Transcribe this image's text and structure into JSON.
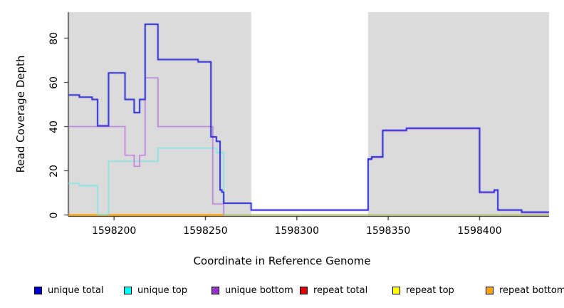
{
  "figure": {
    "xlabel": "Coordinate in Reference Genome",
    "ylabel": "Read Coverage Depth"
  },
  "chart_data": {
    "type": "line",
    "subtype": "step-coverage-depth",
    "title": "",
    "xlabel": "Coordinate in Reference Genome",
    "ylabel": "Read Coverage Depth",
    "xlim": [
      1598175,
      1598438
    ],
    "ylim": [
      0,
      92
    ],
    "x_ticks": [
      1598200,
      1598250,
      1598300,
      1598350,
      1598400
    ],
    "y_ticks": [
      0,
      20,
      40,
      60,
      80
    ],
    "grid": false,
    "legend_position": "bottom",
    "plot_background": {
      "shaded_color": "#DBDBDB",
      "shaded_regions_x": [
        [
          1598175,
          1598275
        ],
        [
          1598339,
          1598438
        ]
      ],
      "white_gap_x": [
        1598275,
        1598339
      ]
    },
    "series": [
      {
        "name": "unique total",
        "line_color": "#2B2BD5",
        "width": 2,
        "zorder": 7,
        "segments": [
          {
            "points": [
              [
                1598175,
                54
              ],
              [
                1598181,
                53
              ],
              [
                1598188,
                52
              ],
              [
                1598191,
                40
              ],
              [
                1598197,
                64
              ],
              [
                1598206,
                52
              ],
              [
                1598211,
                46
              ],
              [
                1598214,
                52
              ],
              [
                1598217,
                86
              ],
              [
                1598224,
                70
              ],
              [
                1598246,
                69
              ],
              [
                1598253,
                35
              ],
              [
                1598256,
                33
              ],
              [
                1598258,
                11
              ],
              [
                1598259,
                10
              ],
              [
                1598260,
                5
              ],
              [
                1598275,
                2
              ],
              [
                1598339,
                25
              ],
              [
                1598341,
                26
              ],
              [
                1598347,
                38
              ],
              [
                1598360,
                39
              ],
              [
                1598400,
                10
              ],
              [
                1598408,
                11
              ],
              [
                1598410,
                2
              ],
              [
                1598423,
                1
              ]
            ],
            "end": 1598438
          }
        ]
      },
      {
        "name": "unique top",
        "line_color": "#7FE8E4",
        "width": 1.6,
        "zorder": 5,
        "segments": [
          {
            "points": [
              [
                1598175,
                14
              ],
              [
                1598181,
                13
              ],
              [
                1598191,
                0
              ],
              [
                1598197,
                24
              ],
              [
                1598224,
                30
              ],
              [
                1598256,
                28
              ],
              [
                1598260,
                0
              ]
            ],
            "end": 1598260
          }
        ]
      },
      {
        "name": "unique bottom",
        "line_color": "#BC7BDE",
        "width": 1.6,
        "zorder": 6,
        "segments": [
          {
            "points": [
              [
                1598175,
                40
              ],
              [
                1598206,
                27
              ],
              [
                1598211,
                22
              ],
              [
                1598214,
                27
              ],
              [
                1598217,
                62
              ],
              [
                1598224,
                40
              ],
              [
                1598254,
                5
              ],
              [
                1598260,
                0
              ]
            ],
            "end": 1598260
          },
          {
            "points": [
              [
                1598275,
                2
              ],
              [
                1598339,
                25
              ],
              [
                1598341,
                26
              ],
              [
                1598347,
                38
              ],
              [
                1598360,
                39
              ],
              [
                1598400,
                10
              ],
              [
                1598408,
                11
              ],
              [
                1598410,
                2
              ],
              [
                1598423,
                1
              ]
            ],
            "end": 1598438
          }
        ]
      },
      {
        "name": "repeat total",
        "line_color": "#DE0000",
        "width": 1.6,
        "zorder": 1,
        "segments": [
          {
            "points": [
              [
                1598175,
                0
              ]
            ],
            "end": 1598438
          }
        ]
      },
      {
        "name": "repeat top",
        "line_color": "#FFFF00",
        "width": 1.6,
        "zorder": 2,
        "segments": [
          {
            "points": [
              [
                1598175,
                0
              ]
            ],
            "end": 1598438
          }
        ]
      },
      {
        "name": "repeat bottom",
        "line_color": "#FFA500",
        "width": 2,
        "zorder": 3,
        "segments": [
          {
            "points": [
              [
                1598175,
                0
              ]
            ],
            "end": 1598260
          }
        ]
      }
    ],
    "zero_overlap_line": {
      "from": 1598260,
      "to": 1598438,
      "value": 0,
      "color": "#9ED89E",
      "zorder": 4,
      "note": "light green line visible where zero-depth series overlap right of 1598260"
    },
    "legend": [
      {
        "label": "unique total",
        "swatch_color": "#0000CD"
      },
      {
        "label": "unique top",
        "swatch_color": "#00FFFF"
      },
      {
        "label": "unique bottom",
        "swatch_color": "#9932CC"
      },
      {
        "label": "repeat total",
        "swatch_color": "#DE0000"
      },
      {
        "label": "repeat top",
        "swatch_color": "#FFFF00"
      },
      {
        "label": "repeat bottom",
        "swatch_color": "#FFA500"
      }
    ]
  }
}
